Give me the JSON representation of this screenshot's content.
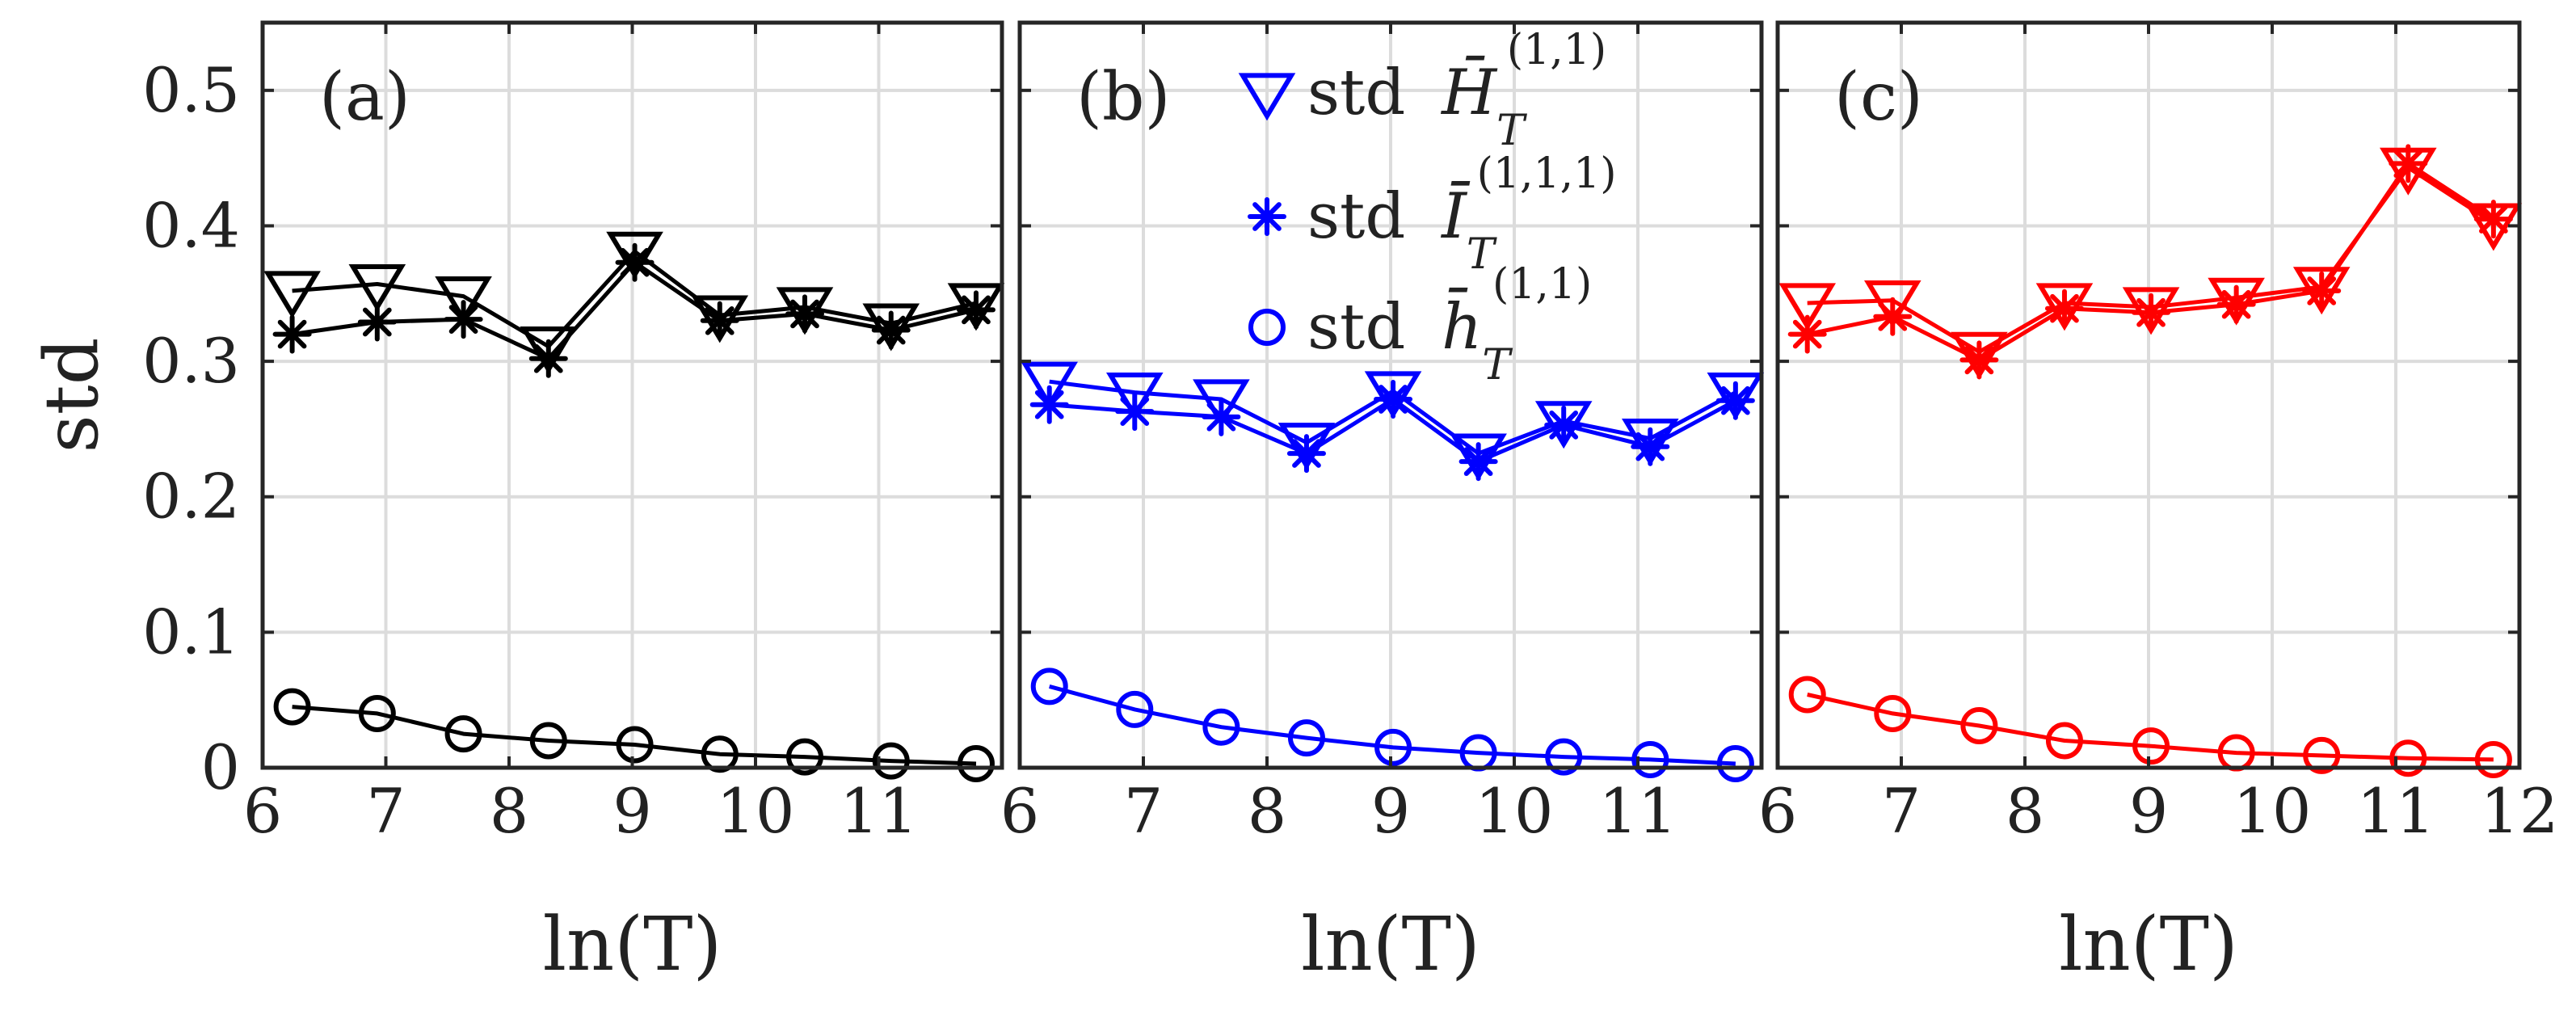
{
  "chart_data": {
    "type": "line",
    "ylabel": "std",
    "xlabel": "ln(T)",
    "x": [
      6.24,
      6.93,
      7.63,
      8.32,
      9.02,
      9.71,
      10.4,
      11.1,
      11.79
    ],
    "ylim": [
      0,
      0.55
    ],
    "yticks": [
      0,
      0.1,
      0.2,
      0.3,
      0.4,
      0.5
    ],
    "yticklabels": [
      "0",
      "0.1",
      "0.2",
      "0.3",
      "0.4",
      "0.5"
    ],
    "legend": {
      "location": "top inside panel (b)",
      "entries": [
        {
          "marker": "triangle-down",
          "text": "std",
          "symbol": "H̄",
          "sub": "T",
          "sup": "(1,1)"
        },
        {
          "marker": "asterisk",
          "text": "std",
          "symbol": "Ī",
          "sub": "T",
          "sup": "(1,1,1)"
        },
        {
          "marker": "circle",
          "text": "std",
          "symbol": "h̄",
          "sub": "T",
          "sup": "(1,1)"
        }
      ]
    },
    "panels": [
      {
        "label": "(a)",
        "color": "#000000",
        "xlim": [
          6,
          12
        ],
        "xticks": [
          6,
          7,
          8,
          9,
          10,
          11
        ],
        "xticklabels": [
          "6",
          "7",
          "8",
          "9",
          "10",
          "11"
        ],
        "series": [
          {
            "name": "std H_T^(1,1)",
            "marker": "triangle-down",
            "values": [
              0.352,
              0.357,
              0.348,
              0.311,
              0.381,
              0.334,
              0.34,
              0.328,
              0.343
            ]
          },
          {
            "name": "std I_T^(1,1,1)",
            "marker": "asterisk",
            "values": [
              0.32,
              0.329,
              0.331,
              0.302,
              0.373,
              0.33,
              0.335,
              0.323,
              0.338
            ]
          },
          {
            "name": "std h_T^(1,1)",
            "marker": "circle",
            "values": [
              0.045,
              0.04,
              0.025,
              0.02,
              0.017,
              0.01,
              0.008,
              0.005,
              0.003
            ]
          }
        ]
      },
      {
        "label": "(b)",
        "color": "#0000ff",
        "xlim": [
          6,
          12
        ],
        "xticks": [
          6,
          7,
          8,
          9,
          10,
          11
        ],
        "xticklabels": [
          "6",
          "7",
          "8",
          "9",
          "10",
          "11"
        ],
        "series": [
          {
            "name": "std H_T^(1,1)",
            "marker": "triangle-down",
            "values": [
              0.285,
              0.277,
              0.272,
              0.24,
              0.278,
              0.232,
              0.256,
              0.243,
              0.277
            ]
          },
          {
            "name": "std I_T^(1,1,1)",
            "marker": "asterisk",
            "values": [
              0.268,
              0.263,
              0.259,
              0.232,
              0.272,
              0.226,
              0.253,
              0.237,
              0.271
            ]
          },
          {
            "name": "std h_T^(1,1)",
            "marker": "circle",
            "values": [
              0.06,
              0.043,
              0.03,
              0.022,
              0.015,
              0.011,
              0.008,
              0.006,
              0.003
            ]
          }
        ]
      },
      {
        "label": "(c)",
        "color": "#ff0000",
        "xlim": [
          6,
          12
        ],
        "xticks": [
          6,
          7,
          8,
          9,
          10,
          11,
          12
        ],
        "xticklabels": [
          "6",
          "7",
          "8",
          "9",
          "10",
          "11",
          "12"
        ],
        "series": [
          {
            "name": "std H_T^(1,1)",
            "marker": "triangle-down",
            "values": [
              0.343,
              0.345,
              0.307,
              0.343,
              0.34,
              0.347,
              0.355,
              0.443,
              0.402
            ]
          },
          {
            "name": "std I_T^(1,1,1)",
            "marker": "asterisk",
            "values": [
              0.32,
              0.333,
              0.301,
              0.339,
              0.336,
              0.342,
              0.352,
              0.446,
              0.405
            ]
          },
          {
            "name": "std h_T^(1,1)",
            "marker": "circle",
            "values": [
              0.054,
              0.04,
              0.031,
              0.02,
              0.016,
              0.011,
              0.009,
              0.007,
              0.006
            ]
          }
        ]
      }
    ]
  }
}
